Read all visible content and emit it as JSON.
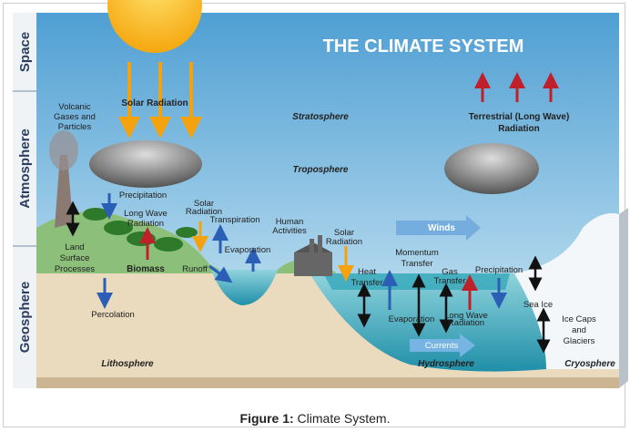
{
  "sidebar": {
    "space": "Space",
    "atmosphere": "Atmosphere",
    "geosphere": "Geosphere"
  },
  "title": "THE CLIMATE SYSTEM",
  "labels": [
    {
      "lines": [
        "Solar Radiation"
      ]
    },
    {
      "lines": [
        "Volcanic",
        "Gases and",
        "Particles"
      ]
    },
    {
      "lines": [
        "Stratosphere"
      ]
    },
    {
      "lines": [
        "Terrestrial (Long Wave)",
        "Radiation"
      ]
    },
    {
      "lines": [
        "Troposphere"
      ]
    },
    {
      "lines": [
        "Precipitation"
      ]
    },
    {
      "lines": [
        "Long Wave",
        "Radiation"
      ]
    },
    {
      "lines": [
        "Solar",
        "Radiation"
      ]
    },
    {
      "lines": [
        "Transpiration"
      ]
    },
    {
      "lines": [
        "Human",
        "Activities"
      ]
    },
    {
      "lines": [
        "Solar",
        "Radiation"
      ]
    },
    {
      "lines": [
        "Winds"
      ]
    },
    {
      "lines": [
        "Evaporation"
      ]
    },
    {
      "lines": [
        "Land",
        "Surface",
        "Processes"
      ]
    },
    {
      "lines": [
        "Biomass"
      ]
    },
    {
      "lines": [
        "Runoff"
      ]
    },
    {
      "lines": [
        "Momentum",
        "Transfer"
      ]
    },
    {
      "lines": [
        "Heat",
        "Transfer"
      ]
    },
    {
      "lines": [
        "Gas",
        "Transfer"
      ]
    },
    {
      "lines": [
        "Precipitation"
      ]
    },
    {
      "lines": [
        "Sea Ice"
      ]
    },
    {
      "lines": [
        "Percolation"
      ]
    },
    {
      "lines": [
        "Evaporation"
      ]
    },
    {
      "lines": [
        "Long Wave",
        "Radiation"
      ]
    },
    {
      "lines": [
        "Ice Caps",
        "and",
        "Glaciers"
      ]
    },
    {
      "lines": [
        "Currents"
      ]
    },
    {
      "lines": [
        "Lithosphere"
      ]
    },
    {
      "lines": [
        "Hydrosphere"
      ]
    },
    {
      "lines": [
        "Cryosphere"
      ]
    }
  ],
  "caption": {
    "label": "Figure 1:",
    "text": "Climate System."
  }
}
